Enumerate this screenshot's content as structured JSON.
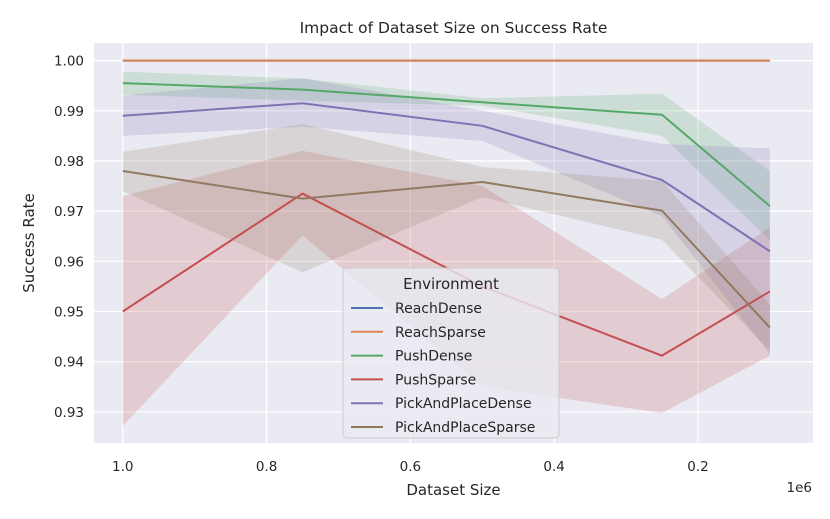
{
  "chart_data": {
    "type": "line",
    "title": "Impact of Dataset Size on Success Rate",
    "xlabel": "Dataset Size",
    "ylabel": "Success Rate",
    "x_offset_label": "1e6",
    "x_inverted": true,
    "xlim": [
      1.04,
      0.04
    ],
    "ylim": [
      0.9238,
      1.0035
    ],
    "x_ticks": [
      1.0,
      0.8,
      0.6,
      0.4,
      0.2
    ],
    "x_tick_labels": [
      "1.0",
      "0.8",
      "0.6",
      "0.4",
      "0.2"
    ],
    "y_ticks": [
      0.93,
      0.94,
      0.95,
      0.96,
      0.97,
      0.98,
      0.99,
      1.0
    ],
    "y_tick_labels": [
      "0.93",
      "0.94",
      "0.95",
      "0.96",
      "0.97",
      "0.98",
      "0.99",
      "1.00"
    ],
    "grid": true,
    "legend": {
      "title": "Environment",
      "placement": "lower-center"
    },
    "x": [
      1.0,
      0.75,
      0.5,
      0.25,
      0.1
    ],
    "series": [
      {
        "name": "ReachDense",
        "color": "#4c72b0",
        "values": [
          1.0,
          1.0,
          1.0,
          1.0,
          1.0
        ],
        "lower": [
          1.0,
          1.0,
          1.0,
          1.0,
          1.0
        ],
        "upper": [
          1.0,
          1.0,
          1.0,
          1.0,
          1.0
        ]
      },
      {
        "name": "ReachSparse",
        "color": "#dd8452",
        "values": [
          1.0,
          1.0,
          1.0,
          1.0,
          1.0
        ],
        "lower": [
          1.0,
          1.0,
          1.0,
          1.0,
          1.0
        ],
        "upper": [
          1.0,
          1.0,
          1.0,
          1.0,
          1.0
        ]
      },
      {
        "name": "PushDense",
        "color": "#55a868",
        "values": [
          0.9955,
          0.9942,
          0.9917,
          0.9892,
          0.971
        ],
        "lower": [
          0.9932,
          0.992,
          0.991,
          0.985,
          0.9642
        ],
        "upper": [
          0.9978,
          0.9964,
          0.9925,
          0.9934,
          0.978
        ]
      },
      {
        "name": "PushSparse",
        "color": "#c44e52",
        "values": [
          0.95,
          0.9735,
          0.955,
          0.9412,
          0.954
        ],
        "lower": [
          0.9272,
          0.9652,
          0.935,
          0.9298,
          0.9412
        ],
        "upper": [
          0.973,
          0.982,
          0.975,
          0.9525,
          0.9668
        ]
      },
      {
        "name": "PickAndPlaceDense",
        "color": "#8172b3",
        "values": [
          0.989,
          0.9915,
          0.987,
          0.9762,
          0.962
        ],
        "lower": [
          0.985,
          0.9868,
          0.984,
          0.969,
          0.9415
        ],
        "upper": [
          0.993,
          0.9965,
          0.99,
          0.9834,
          0.9825
        ]
      },
      {
        "name": "PickAndPlaceSparse",
        "color": "#937860",
        "values": [
          0.978,
          0.9725,
          0.9758,
          0.9701,
          0.9468
        ],
        "lower": [
          0.974,
          0.9578,
          0.9728,
          0.9643,
          0.9422
        ],
        "upper": [
          0.9818,
          0.9873,
          0.9788,
          0.976,
          0.9514
        ]
      }
    ]
  }
}
